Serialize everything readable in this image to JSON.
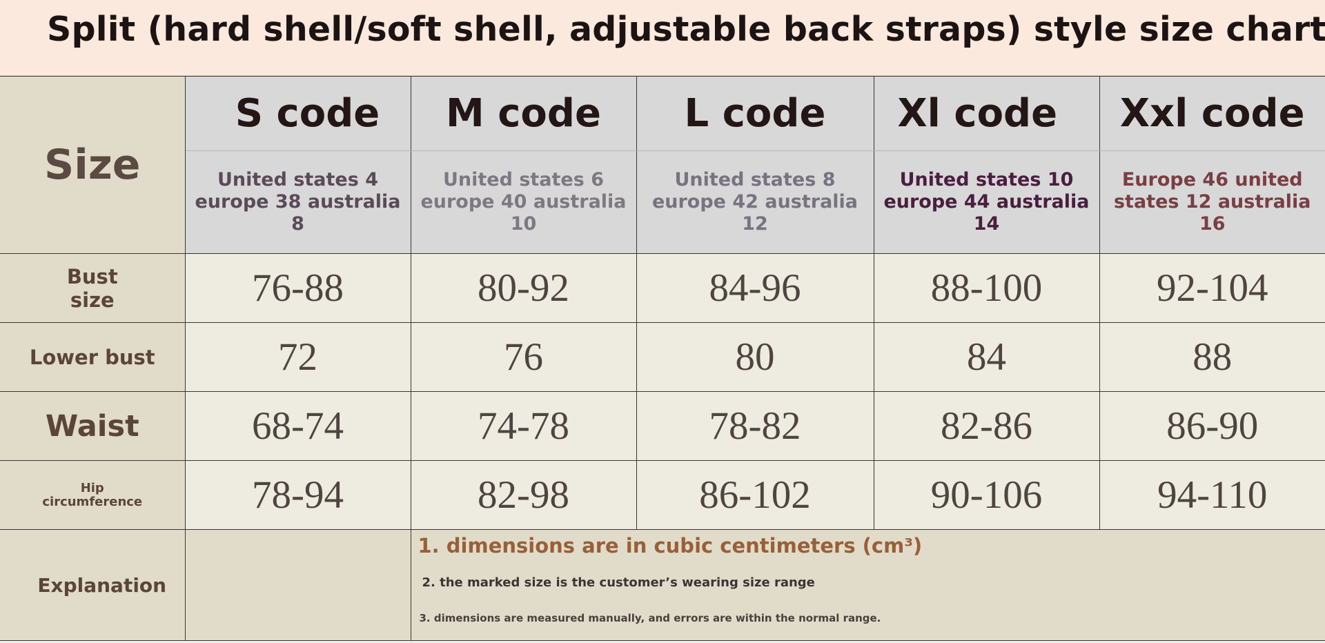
{
  "title": "Split (hard shell/soft shell, adjustable back straps) style size chart",
  "table": {
    "size_label": "Size",
    "codes": [
      "S code",
      "M code",
      "L code",
      "Xl code",
      "Xxl code"
    ],
    "regions": [
      {
        "text": "United states 4 europe 38 australia 8",
        "color": "#5b4a58"
      },
      {
        "text": "United states 6 europe 40 australia 10",
        "color": "#7d7882"
      },
      {
        "text": "United states 8 europe 42 australia 12",
        "color": "#787380"
      },
      {
        "text": "United states 10 europe 44 australia 14",
        "color": "#4a1e3e"
      },
      {
        "text": "Europe 46 united states 12 australia 16",
        "color": "#7a3e43"
      }
    ],
    "rows": [
      {
        "label": "Bust size",
        "values": [
          "76-88",
          "80-92",
          "84-96",
          "88-100",
          "92-104"
        ]
      },
      {
        "label": "Lower bust",
        "values": [
          "72",
          "76",
          "80",
          "84",
          "88"
        ]
      },
      {
        "label": "Waist",
        "values": [
          "68-74",
          "74-78",
          "78-82",
          "82-86",
          "86-90"
        ]
      },
      {
        "label": "Hip circumference",
        "values": [
          "78-94",
          "82-98",
          "86-102",
          "90-106",
          "94-110"
        ]
      }
    ],
    "explanation_label": "Explanation",
    "notes": [
      "1. dimensions are in cubic centimeters (cm³)",
      "2. the marked size is the customer’s wearing size range",
      "3. dimensions are measured manually, and errors are within the normal range."
    ]
  },
  "colors": {
    "title_band": "#fce9dd",
    "label_column": "#e1dcca",
    "header_cells": "#d8d8d9",
    "data_cells": "#eeebe0",
    "note_accent": "#9a5f37"
  }
}
